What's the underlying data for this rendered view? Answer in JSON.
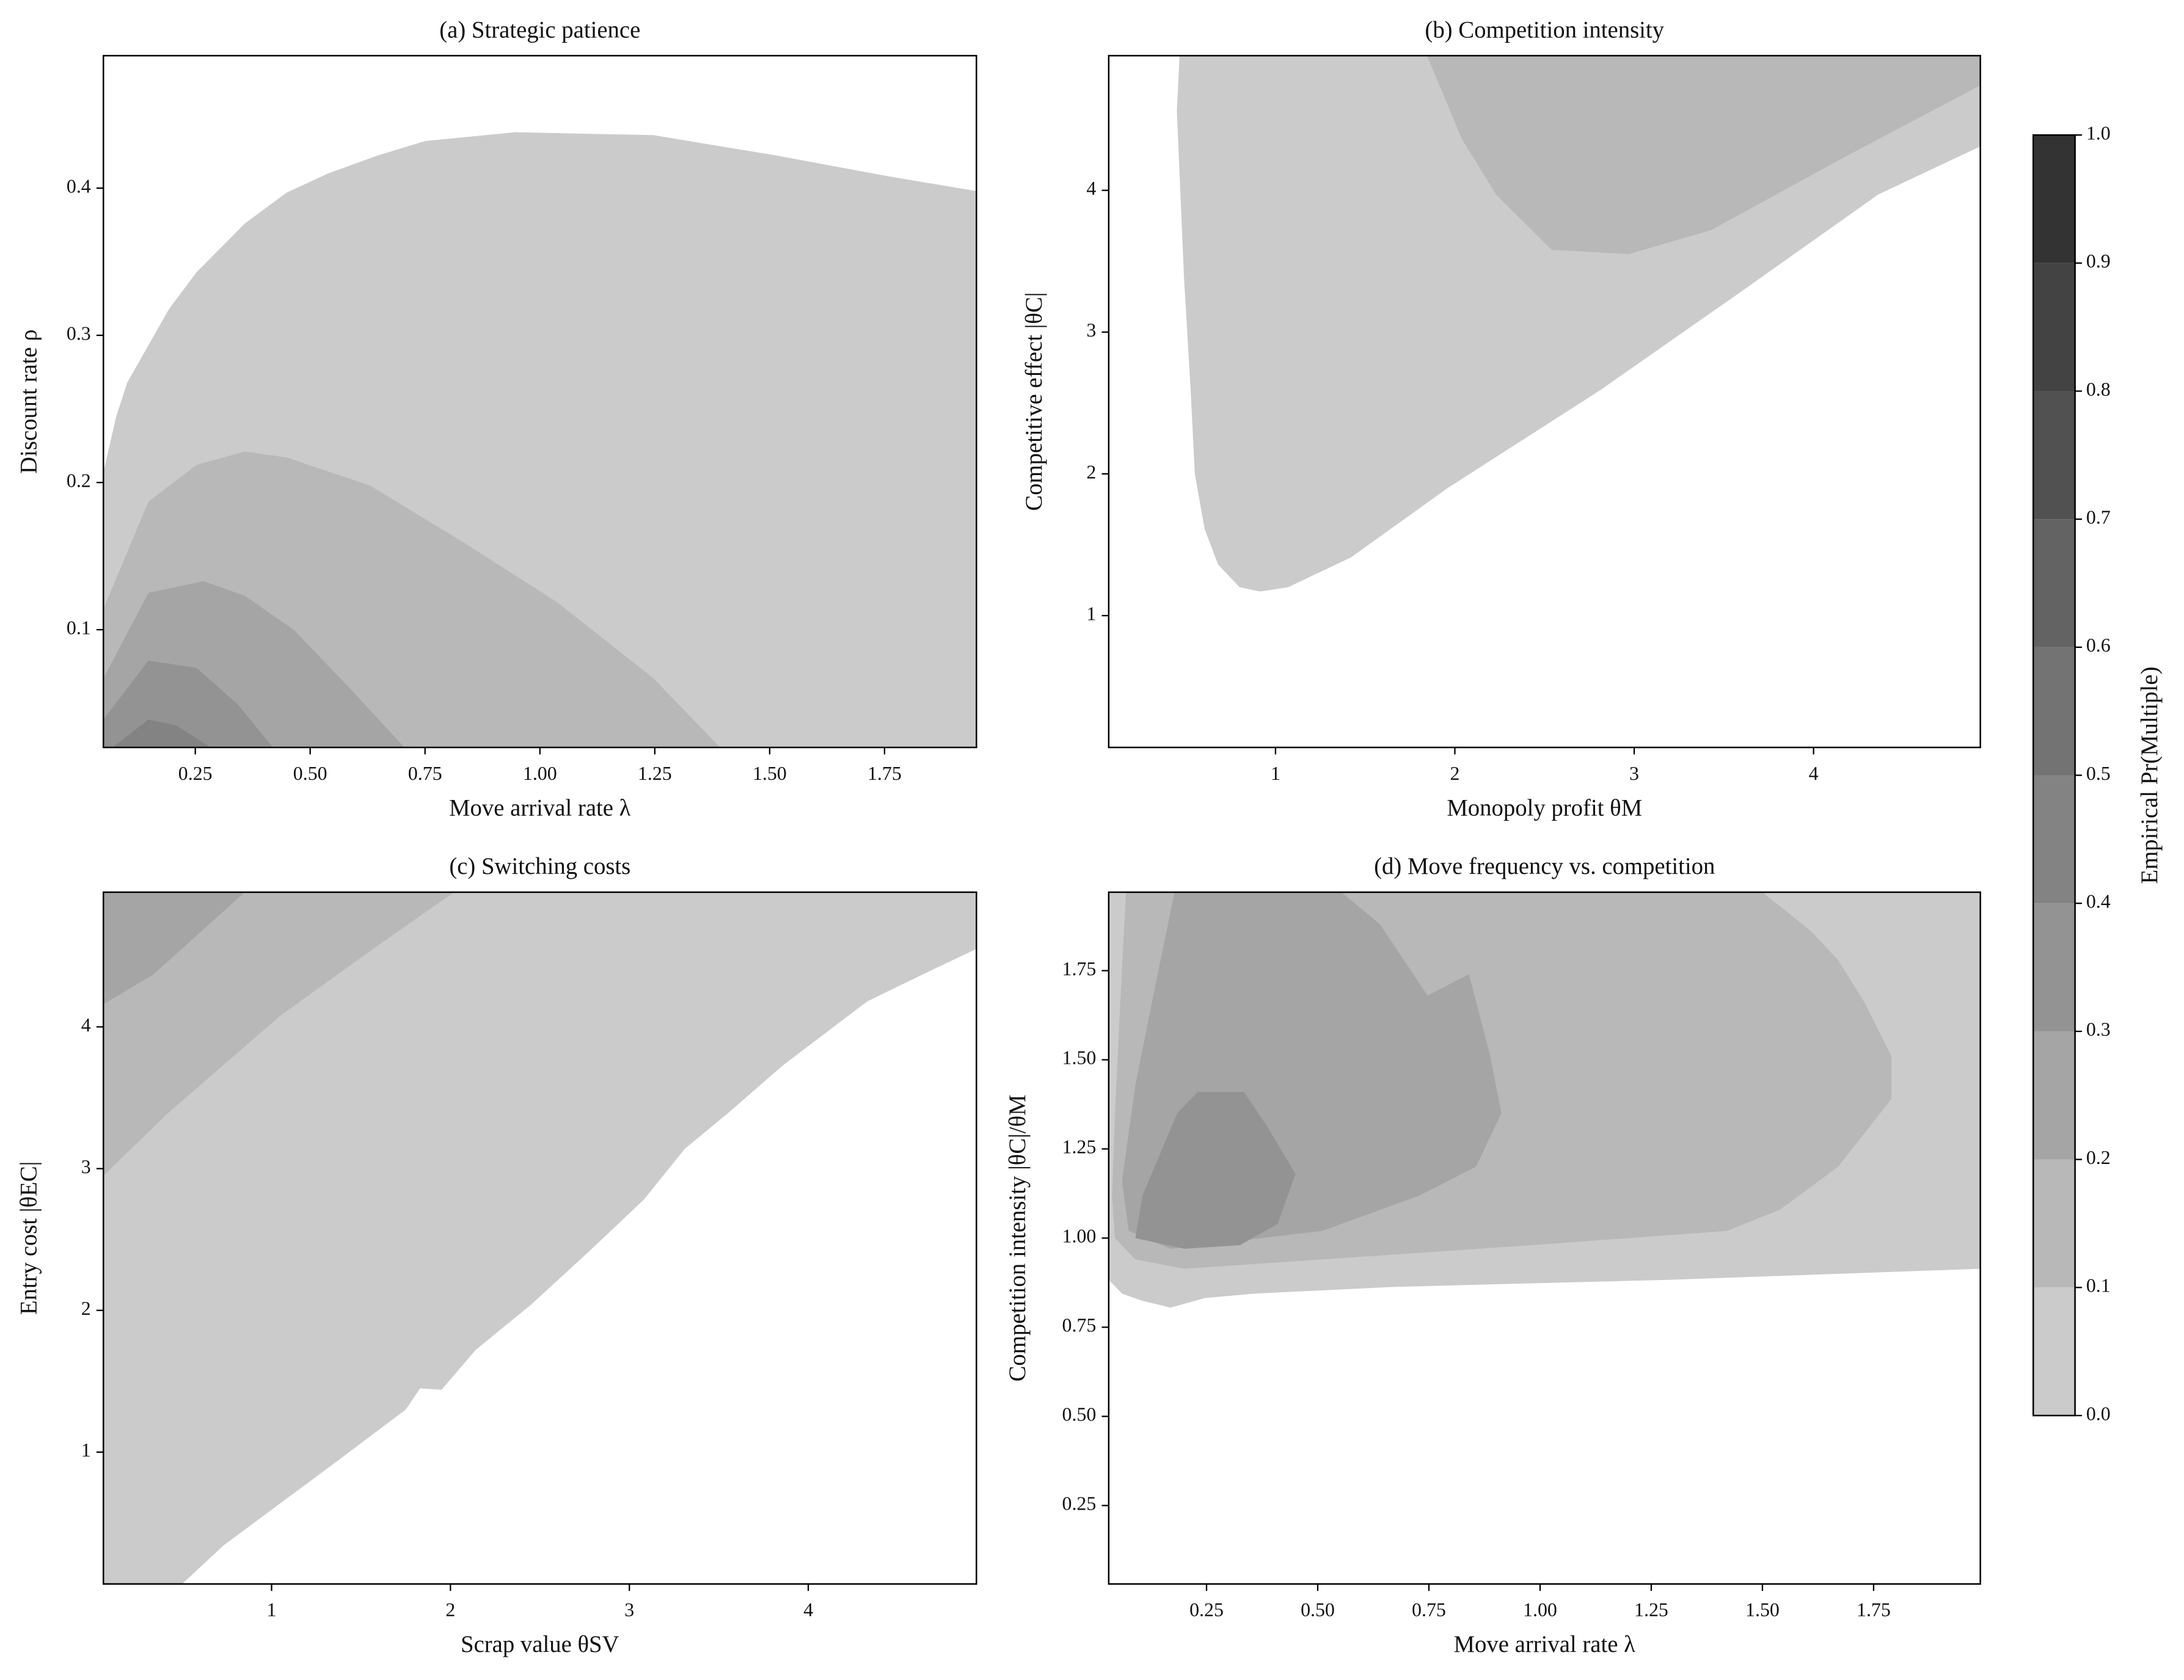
{
  "chart_data": [
    {
      "type": "contour",
      "title": "(a) Strategic patience",
      "xlabel": "Move arrival rate λ",
      "ylabel": "Discount rate ρ",
      "xlim": [
        0.05,
        1.95
      ],
      "ylim": [
        0.02,
        0.49
      ],
      "xticks": [
        0.25,
        {
          "value": 0.5,
          "label": "0.50"
        },
        0.75,
        {
          "value": 1.0,
          "label": "1.00"
        },
        1.25,
        {
          "value": 1.5,
          "label": "1.50"
        },
        1.75
      ],
      "yticks": [
        0.1,
        0.2,
        0.3,
        0.4
      ],
      "contours": [
        {
          "level": 0,
          "x": [
            0.05,
            0.05,
            0.078,
            0.102,
            0.193,
            0.253,
            0.358,
            0.449,
            0.539,
            0.645,
            0.75,
            0.946,
            1.247,
            1.518,
            1.759,
            1.95,
            1.95
          ],
          "y": [
            0.02,
            0.207,
            0.245,
            0.268,
            0.318,
            0.343,
            0.376,
            0.397,
            0.41,
            0.422,
            0.432,
            0.438,
            0.436,
            0.422,
            0.408,
            0.398,
            0.02
          ]
        },
        {
          "level": 0.1,
          "x": [
            0.05,
            0.05,
            0.148,
            0.253,
            0.358,
            0.449,
            0.63,
            0.825,
            1.036,
            1.247,
            1.392
          ],
          "y": [
            0.02,
            0.114,
            0.187,
            0.212,
            0.221,
            0.217,
            0.198,
            0.161,
            0.119,
            0.067,
            0.02
          ]
        },
        {
          "level": 0.2,
          "x": [
            0.05,
            0.05,
            0.148,
            0.268,
            0.358,
            0.464,
            0.584,
            0.705
          ],
          "y": [
            0.02,
            0.067,
            0.125,
            0.133,
            0.123,
            0.1,
            0.061,
            0.02
          ]
        },
        {
          "level": 0.3,
          "x": [
            0.05,
            0.05,
            0.148,
            0.253,
            0.343,
            0.419
          ],
          "y": [
            0.02,
            0.039,
            0.079,
            0.074,
            0.049,
            0.02
          ]
        },
        {
          "level": 0.4,
          "x": [
            0.07,
            0.148,
            0.208,
            0.283
          ],
          "y": [
            0.02,
            0.039,
            0.035,
            0.02
          ]
        }
      ]
    },
    {
      "type": "contour",
      "title": "(b) Competition intensity",
      "xlabel": "Monopoly profit θM",
      "ylabel": "Competitive effect |θC|",
      "xlim": [
        0.07,
        4.93
      ],
      "ylim": [
        0.07,
        4.95
      ],
      "xticks": [
        1,
        2,
        3,
        4
      ],
      "yticks": [
        1,
        2,
        3,
        4
      ],
      "contours": [
        {
          "level": 0,
          "x": [
            0.465,
            0.45,
            0.49,
            0.527,
            0.55,
            0.605,
            0.68,
            0.8,
            0.915,
            1.07,
            1.42,
            1.96,
            2.81,
            3.59,
            4.36,
            4.93,
            4.93
          ],
          "y": [
            4.95,
            4.56,
            3.38,
            2.59,
            2.0,
            1.61,
            1.36,
            1.2,
            1.17,
            1.2,
            1.41,
            1.9,
            2.59,
            3.28,
            3.97,
            4.31,
            4.95
          ]
        },
        {
          "level": 0.1,
          "x": [
            1.845,
            2.04,
            2.23,
            2.54,
            2.97,
            3.43,
            4.21,
            4.93,
            4.93
          ],
          "y": [
            4.95,
            4.36,
            3.97,
            3.58,
            3.55,
            3.72,
            4.26,
            4.74,
            4.95
          ]
        }
      ]
    },
    {
      "type": "contour",
      "title": "(c) Switching costs",
      "xlabel": "Scrap value θSV",
      "ylabel": "Entry cost |θEC|",
      "xlim": [
        0.06,
        4.94
      ],
      "ylim": [
        0.07,
        4.95
      ],
      "xticks": [
        1,
        2,
        3,
        4
      ],
      "yticks": [
        1,
        2,
        3,
        4
      ],
      "contours": [
        {
          "level": 0,
          "x": [
            0.06,
            0.5,
            0.73,
            1.05,
            1.36,
            1.75,
            1.83,
            1.95,
            2.14,
            2.45,
            2.77,
            3.08,
            3.31,
            3.55,
            3.86,
            4.33,
            4.64,
            4.94,
            4.94,
            0.06
          ],
          "y": [
            0.07,
            0.07,
            0.34,
            0.64,
            0.93,
            1.3,
            1.45,
            1.44,
            1.72,
            2.04,
            2.41,
            2.78,
            3.14,
            3.39,
            3.73,
            4.18,
            4.37,
            4.55,
            4.95,
            4.95
          ]
        },
        {
          "level": 0.1,
          "x": [
            0.06,
            0.42,
            1.05,
            1.59,
            2.02,
            0.06
          ],
          "y": [
            2.95,
            3.39,
            4.08,
            4.57,
            4.95,
            4.95
          ]
        },
        {
          "level": 0.2,
          "x": [
            0.06,
            0.34,
            0.85,
            0.06
          ],
          "y": [
            4.16,
            4.37,
            4.95,
            4.95
          ]
        }
      ]
    },
    {
      "type": "contour",
      "title": "(d) Move frequency vs. competition",
      "xlabel": "Move arrival rate λ",
      "ylabel": "Competition intensity |θC|/θM",
      "xlim": [
        0.03,
        1.99
      ],
      "ylim": [
        0.03,
        1.97
      ],
      "xticks": [
        0.25,
        {
          "value": 0.5,
          "label": "0.50"
        },
        0.75,
        {
          "value": 1.0,
          "label": "1.00"
        },
        1.25,
        {
          "value": 1.5,
          "label": "1.50"
        },
        1.75
      ],
      "yticks": [
        0.25,
        {
          "value": 0.5,
          "label": "0.50"
        },
        0.75,
        {
          "value": 1.0,
          "label": "1.00"
        },
        1.25,
        {
          "value": 1.5,
          "label": "1.50"
        },
        1.75
      ],
      "contours": [
        {
          "level": 0,
          "x": [
            0.03,
            0.06,
            0.106,
            0.169,
            0.247,
            0.356,
            0.669,
            1.294,
            1.99,
            1.99,
            0.03
          ],
          "y": [
            0.883,
            0.844,
            0.824,
            0.805,
            0.832,
            0.844,
            0.863,
            0.883,
            0.914,
            1.97,
            1.97
          ]
        },
        {
          "level": 0.1,
          "x": [
            0.069,
            0.059,
            0.044,
            0.0375,
            0.044,
            0.09,
            0.2,
            0.51,
            0.98,
            1.42,
            1.54,
            1.67,
            1.79,
            1.79,
            1.73,
            1.67,
            1.61,
            1.53,
            1.5
          ],
          "y": [
            1.97,
            1.74,
            1.35,
            1.12,
            1.0,
            0.94,
            0.914,
            0.94,
            0.98,
            1.02,
            1.08,
            1.2,
            1.39,
            1.51,
            1.66,
            1.78,
            1.86,
            1.94,
            1.97
          ]
        },
        {
          "level": 0.2,
          "x": [
            0.178,
            0.14,
            0.09,
            0.06,
            0.075,
            0.169,
            0.51,
            0.73,
            0.856,
            0.913,
            0.888,
            0.84,
            0.747,
            0.64,
            0.553
          ],
          "y": [
            1.97,
            1.74,
            1.43,
            1.16,
            1.02,
            0.97,
            1.02,
            1.12,
            1.2,
            1.35,
            1.51,
            1.74,
            1.68,
            1.88,
            1.97
          ]
        },
        {
          "level": 0.3,
          "x": [
            0.106,
            0.184,
            0.23,
            0.334,
            0.388,
            0.45,
            0.41,
            0.325,
            0.2,
            0.09
          ],
          "y": [
            1.12,
            1.35,
            1.41,
            1.41,
            1.31,
            1.18,
            1.04,
            0.98,
            0.97,
            1.0
          ]
        }
      ]
    },
    {
      "type": "colorbar",
      "label": "Empirical Pr(Multiple)",
      "levels": [
        0,
        0.1,
        0.2,
        0.3,
        0.4,
        0.5,
        0.6,
        0.7,
        0.8,
        0.9,
        1.0
      ],
      "colors": [
        "#cbcbcb",
        "#b8b8b8",
        "#a5a5a5",
        "#939393",
        "#838383",
        "#737373",
        "#636363",
        "#515151",
        "#434343",
        "#333333"
      ],
      "ylim": [
        0,
        1
      ],
      "yticks": [
        {
          "value": 0,
          "label": "0.0"
        },
        0.1,
        0.2,
        0.3,
        0.4,
        0.5,
        0.6,
        0.7,
        0.8,
        0.9,
        {
          "value": 1,
          "label": "1.0"
        }
      ]
    }
  ]
}
